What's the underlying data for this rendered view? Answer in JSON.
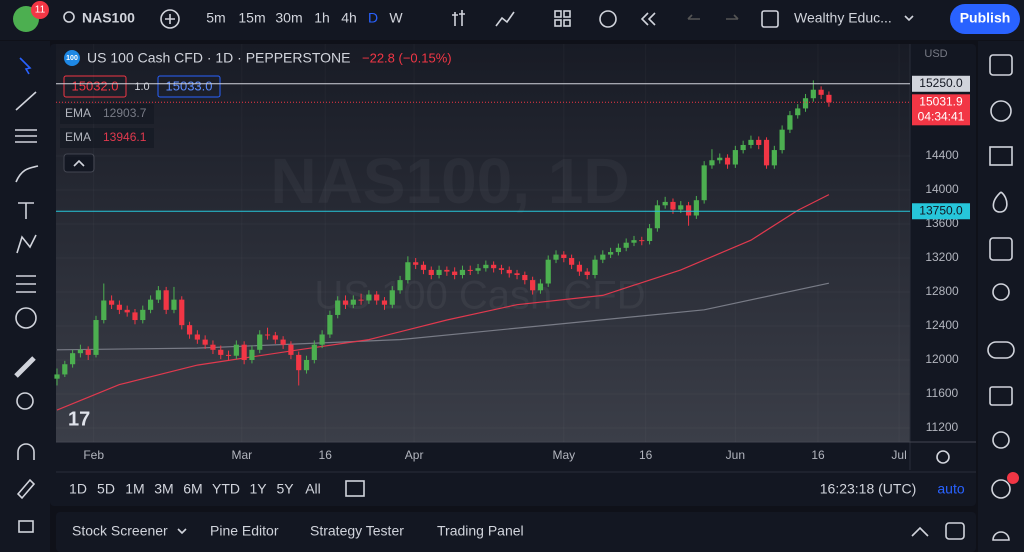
{
  "ui": {
    "badge": "11",
    "symbol": "NAS100",
    "intervals": [
      "5m",
      "15m",
      "30m",
      "1h",
      "4h",
      "D",
      "W"
    ],
    "layout": "Wealthy Educ...",
    "publish": "Publish",
    "ranges": [
      "1D",
      "5D",
      "1M",
      "3M",
      "6M",
      "YTD",
      "1Y",
      "5Y",
      "All"
    ],
    "clock": "16:23:18 (UTC)",
    "scale_mode": "auto",
    "tabs": [
      "Stock Screener",
      "Pine Editor",
      "Strategy Tester",
      "Trading Panel"
    ]
  },
  "chart_data": {
    "type": "candlestick",
    "logo": "100",
    "title": "US 100 Cash CFD · 1D · PEPPERSTONE",
    "change": "−22.8 (−0.15%)",
    "bid": "15032.0",
    "spread": "1.0",
    "ask": "15033.0",
    "currency": "USD",
    "watermark": "NAS100, 1D",
    "watermark_subtitle": "US 100 Cash CFD",
    "up_color": "#4caf50",
    "down_color": "#f23645",
    "grid": true,
    "xlim": [
      -0.13,
      109.4
    ],
    "ylim": [
      11035,
      15718
    ],
    "xticks": [
      {
        "value": 4.7,
        "label": "Feb"
      },
      {
        "value": 23.7,
        "label": "Mar"
      },
      {
        "value": 34.4,
        "label": "16"
      },
      {
        "value": 45.8,
        "label": "Apr"
      },
      {
        "value": 65,
        "label": "May"
      },
      {
        "value": 75.5,
        "label": "16"
      },
      {
        "value": 87,
        "label": "Jun"
      },
      {
        "value": 97.6,
        "label": "16"
      },
      {
        "value": 108,
        "label": "Jul"
      }
    ],
    "yticks": [
      11200,
      11600,
      12000,
      12400,
      12800,
      13200,
      13600,
      14000,
      14400
    ],
    "candles": [
      [
        11780,
        11900,
        11700,
        11830
      ],
      [
        11830,
        11990,
        11800,
        11950
      ],
      [
        11950,
        12120,
        11910,
        12080
      ],
      [
        12080,
        12180,
        12030,
        12120
      ],
      [
        12120,
        12160,
        12000,
        12060
      ],
      [
        12060,
        12520,
        12030,
        12470
      ],
      [
        12470,
        12900,
        12430,
        12700
      ],
      [
        12700,
        12760,
        12600,
        12650
      ],
      [
        12650,
        12700,
        12540,
        12590
      ],
      [
        12590,
        12640,
        12510,
        12560
      ],
      [
        12560,
        12600,
        12420,
        12470
      ],
      [
        12470,
        12640,
        12430,
        12590
      ],
      [
        12590,
        12760,
        12550,
        12710
      ],
      [
        12710,
        12870,
        12670,
        12820
      ],
      [
        12820,
        12860,
        12540,
        12590
      ],
      [
        12590,
        12860,
        12550,
        12710
      ],
      [
        12710,
        12750,
        12360,
        12410
      ],
      [
        12410,
        12450,
        12250,
        12300
      ],
      [
        12300,
        12350,
        12190,
        12240
      ],
      [
        12240,
        12290,
        12130,
        12180
      ],
      [
        12180,
        12230,
        12070,
        12120
      ],
      [
        12120,
        12170,
        12010,
        12060
      ],
      [
        12060,
        12110,
        11990,
        12050
      ],
      [
        12050,
        12230,
        12010,
        12180
      ],
      [
        12180,
        12220,
        11950,
        12000
      ],
      [
        12000,
        12170,
        11960,
        12120
      ],
      [
        12120,
        12350,
        12080,
        12300
      ],
      [
        12300,
        12380,
        12240,
        12290
      ],
      [
        12290,
        12330,
        12190,
        12240
      ],
      [
        12240,
        12280,
        12130,
        12180
      ],
      [
        12180,
        12220,
        12010,
        12060
      ],
      [
        12060,
        12100,
        11700,
        11880
      ],
      [
        11880,
        12050,
        11840,
        12000
      ],
      [
        12000,
        12230,
        11960,
        12180
      ],
      [
        12180,
        12350,
        12140,
        12300
      ],
      [
        12300,
        12580,
        12260,
        12530
      ],
      [
        12530,
        12750,
        12490,
        12700
      ],
      [
        12700,
        12760,
        12600,
        12650
      ],
      [
        12650,
        12760,
        12610,
        12710
      ],
      [
        12710,
        12780,
        12650,
        12700
      ],
      [
        12700,
        12820,
        12660,
        12770
      ],
      [
        12770,
        12810,
        12650,
        12700
      ],
      [
        12700,
        12740,
        12590,
        12650
      ],
      [
        12650,
        12870,
        12610,
        12820
      ],
      [
        12820,
        12990,
        12780,
        12940
      ],
      [
        12940,
        13220,
        12900,
        13150
      ],
      [
        13150,
        13200,
        13070,
        13120
      ],
      [
        13120,
        13160,
        13010,
        13060
      ],
      [
        13060,
        13100,
        12950,
        13000
      ],
      [
        13000,
        13110,
        12960,
        13060
      ],
      [
        13060,
        13100,
        12990,
        13040
      ],
      [
        13040,
        13090,
        12950,
        13000
      ],
      [
        13000,
        13110,
        12960,
        13060
      ],
      [
        13060,
        13110,
        13000,
        13050
      ],
      [
        13050,
        13130,
        13010,
        13080
      ],
      [
        13080,
        13170,
        13040,
        13120
      ],
      [
        13120,
        13160,
        13030,
        13080
      ],
      [
        13080,
        13120,
        13010,
        13060
      ],
      [
        13060,
        13100,
        12970,
        13020
      ],
      [
        13020,
        13060,
        12950,
        13000
      ],
      [
        13000,
        13040,
        12890,
        12940
      ],
      [
        12940,
        12980,
        12770,
        12820
      ],
      [
        12820,
        12950,
        12780,
        12900
      ],
      [
        12900,
        13230,
        12860,
        13180
      ],
      [
        13180,
        13290,
        13140,
        13240
      ],
      [
        13240,
        13280,
        13150,
        13200
      ],
      [
        13200,
        13240,
        13070,
        13120
      ],
      [
        13120,
        13160,
        12990,
        13040
      ],
      [
        13040,
        13080,
        12950,
        13000
      ],
      [
        13000,
        13230,
        12960,
        13180
      ],
      [
        13180,
        13290,
        13140,
        13240
      ],
      [
        13240,
        13320,
        13200,
        13270
      ],
      [
        13270,
        13370,
        13230,
        13320
      ],
      [
        13320,
        13430,
        13280,
        13380
      ],
      [
        13380,
        13460,
        13340,
        13410
      ],
      [
        13410,
        13450,
        13350,
        13400
      ],
      [
        13400,
        13600,
        13360,
        13550
      ],
      [
        13550,
        13880,
        13510,
        13820
      ],
      [
        13820,
        13920,
        13780,
        13860
      ],
      [
        13860,
        13900,
        13720,
        13770
      ],
      [
        13770,
        13870,
        13730,
        13820
      ],
      [
        13820,
        13860,
        13580,
        13700
      ],
      [
        13700,
        13930,
        13660,
        13880
      ],
      [
        13880,
        14340,
        13840,
        14290
      ],
      [
        14290,
        14480,
        14250,
        14350
      ],
      [
        14350,
        14430,
        14310,
        14380
      ],
      [
        14380,
        14420,
        14250,
        14300
      ],
      [
        14300,
        14520,
        14260,
        14470
      ],
      [
        14470,
        14580,
        14430,
        14530
      ],
      [
        14530,
        14640,
        14490,
        14590
      ],
      [
        14590,
        14630,
        14480,
        14530
      ],
      [
        14590,
        14620,
        14250,
        14290
      ],
      [
        14290,
        14520,
        14250,
        14470
      ],
      [
        14470,
        14760,
        14430,
        14710
      ],
      [
        14710,
        14930,
        14670,
        14880
      ],
      [
        14880,
        15010,
        14840,
        14960
      ],
      [
        14960,
        15130,
        14920,
        15080
      ],
      [
        15080,
        15290,
        15040,
        15180
      ],
      [
        15180,
        15220,
        15070,
        15120
      ],
      [
        15120,
        15160,
        14980,
        15031.9
      ]
    ],
    "series": [
      {
        "name": "EMA",
        "color": "#787b86",
        "x": [
          0,
          18,
          44,
          63,
          83,
          99
        ],
        "values": [
          12120,
          12140,
          12240,
          12410,
          12590,
          12903.7
        ]
      },
      {
        "name": "EMA",
        "color": "#e0394e",
        "x": [
          0,
          8,
          18,
          31,
          40,
          50,
          59,
          70,
          80,
          89,
          95,
          99
        ],
        "values": [
          11410,
          11710,
          11940,
          12120,
          12240,
          12470,
          12650,
          12760,
          13060,
          13410,
          13760,
          13946.1
        ]
      }
    ],
    "hlines": [
      {
        "value": 15250,
        "label": "15250.0",
        "color": "#d1d4dc"
      },
      {
        "value": 13750,
        "label": "13750.0",
        "color": "#26c6da"
      }
    ],
    "last_price": 15031.9,
    "countdown": "04:34:41"
  }
}
